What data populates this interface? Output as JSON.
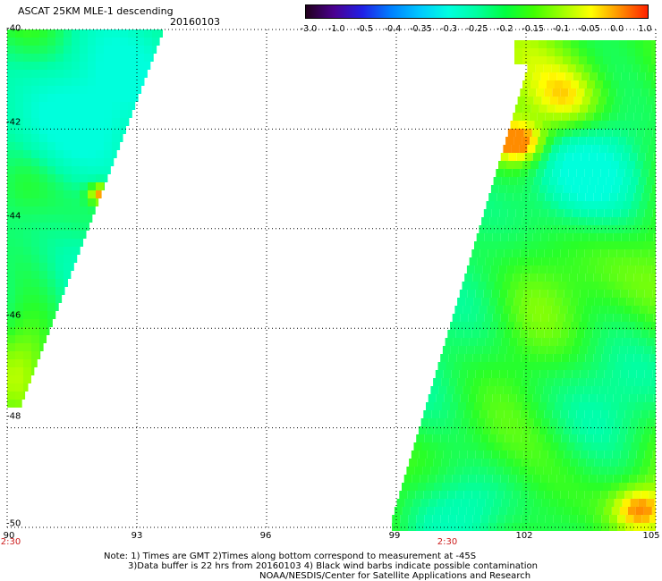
{
  "header": {
    "title": "ASCAT 25KM MLE-1 descending",
    "date": "20160103"
  },
  "colorbar": {
    "labels": [
      "-3.0",
      "-1.0",
      "-0.5",
      "-0.4",
      "-0.35",
      "-0.3",
      "-0.25",
      "-0.2",
      "-0.15",
      "-0.1",
      "-0.05",
      "0.0",
      "1.0"
    ],
    "colors": [
      "#20001a",
      "#4b0090",
      "#2020e6",
      "#0080ff",
      "#00c8ff",
      "#00ffe0",
      "#00ffa0",
      "#00ff40",
      "#40ff00",
      "#a0ff00",
      "#ffff00",
      "#ff9000",
      "#ff2000"
    ]
  },
  "map": {
    "lat_labels": [
      "-40",
      "-42",
      "-44",
      "-46",
      "-48",
      "-50"
    ],
    "lon_labels": [
      "90",
      "93",
      "96",
      "99",
      "102",
      "105"
    ],
    "time_labels": [
      "2:30",
      "2:30"
    ]
  },
  "notes": {
    "line1": "Note: 1) Times are GMT 2)Times along bottom correspond to measurement at -45S",
    "line2": "3)Data buffer is 22 hrs from 20160103 4) Black wind barbs indicate possible contamination",
    "line3": "NOAA/NESDIS/Center for Satellite Applications and Research"
  }
}
